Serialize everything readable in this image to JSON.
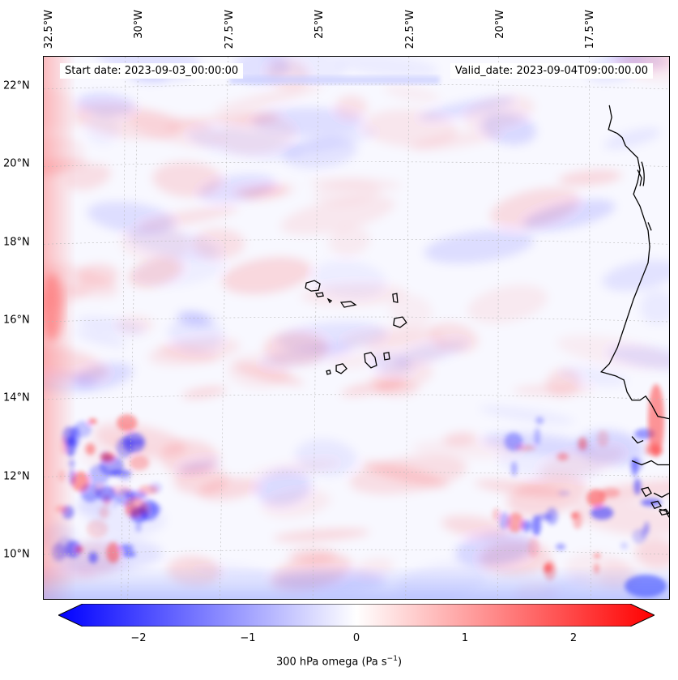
{
  "map": {
    "start_label": "Start date: 2023-09-03_00:00:00",
    "valid_label": "Valid_date: 2023-09-04T09:00:00.00",
    "lon_labels": [
      "32.5°W",
      "30°W",
      "27.5°W",
      "25°W",
      "22.5°W",
      "20°W",
      "17.5°W"
    ],
    "lat_labels": [
      "22°N",
      "20°N",
      "18°N",
      "16°N",
      "14°N",
      "12°N",
      "10°N"
    ],
    "field_colors": {
      "positive": "#ff0000",
      "negative": "#0000ff",
      "neutral": "#ffffff",
      "coastline": "#000000"
    }
  },
  "colorbar": {
    "ticks": [
      "−2",
      "−1",
      "0",
      "1",
      "2"
    ],
    "label_main": "300 hPa omega (Pa s",
    "label_exp": "−1",
    "label_end": ")",
    "range": [
      -2.75,
      2.75
    ],
    "colors": {
      "min": "#0000ff",
      "mid": "#ffffff",
      "max": "#ff0000"
    }
  }
}
